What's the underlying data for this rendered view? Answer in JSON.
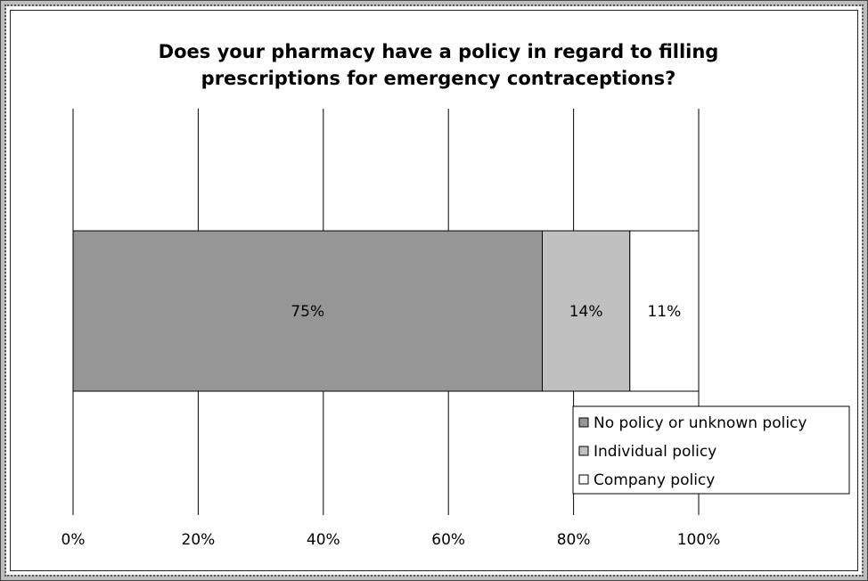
{
  "chart_data": {
    "type": "bar",
    "orientation": "horizontal",
    "stacked": true,
    "percent_stacked": true,
    "title": "Does your pharmacy have a policy in regard to filling prescriptions for emergency contraceptions?",
    "title_lines": [
      "Does your pharmacy have a policy in regard to filling",
      "prescriptions for emergency contraceptions?"
    ],
    "xlim": [
      0,
      100
    ],
    "x_ticks": [
      "0%",
      "20%",
      "40%",
      "60%",
      "80%",
      "100%"
    ],
    "grid": true,
    "legend_position": "bottom-right",
    "series": [
      {
        "name": "No policy or unknown policy",
        "value": 75,
        "label": "75%",
        "color": "#969696"
      },
      {
        "name": "Individual policy",
        "value": 14,
        "label": "14%",
        "color": "#c0c0c0"
      },
      {
        "name": "Company policy",
        "value": 11,
        "label": "11%",
        "color": "#ffffff"
      }
    ]
  }
}
